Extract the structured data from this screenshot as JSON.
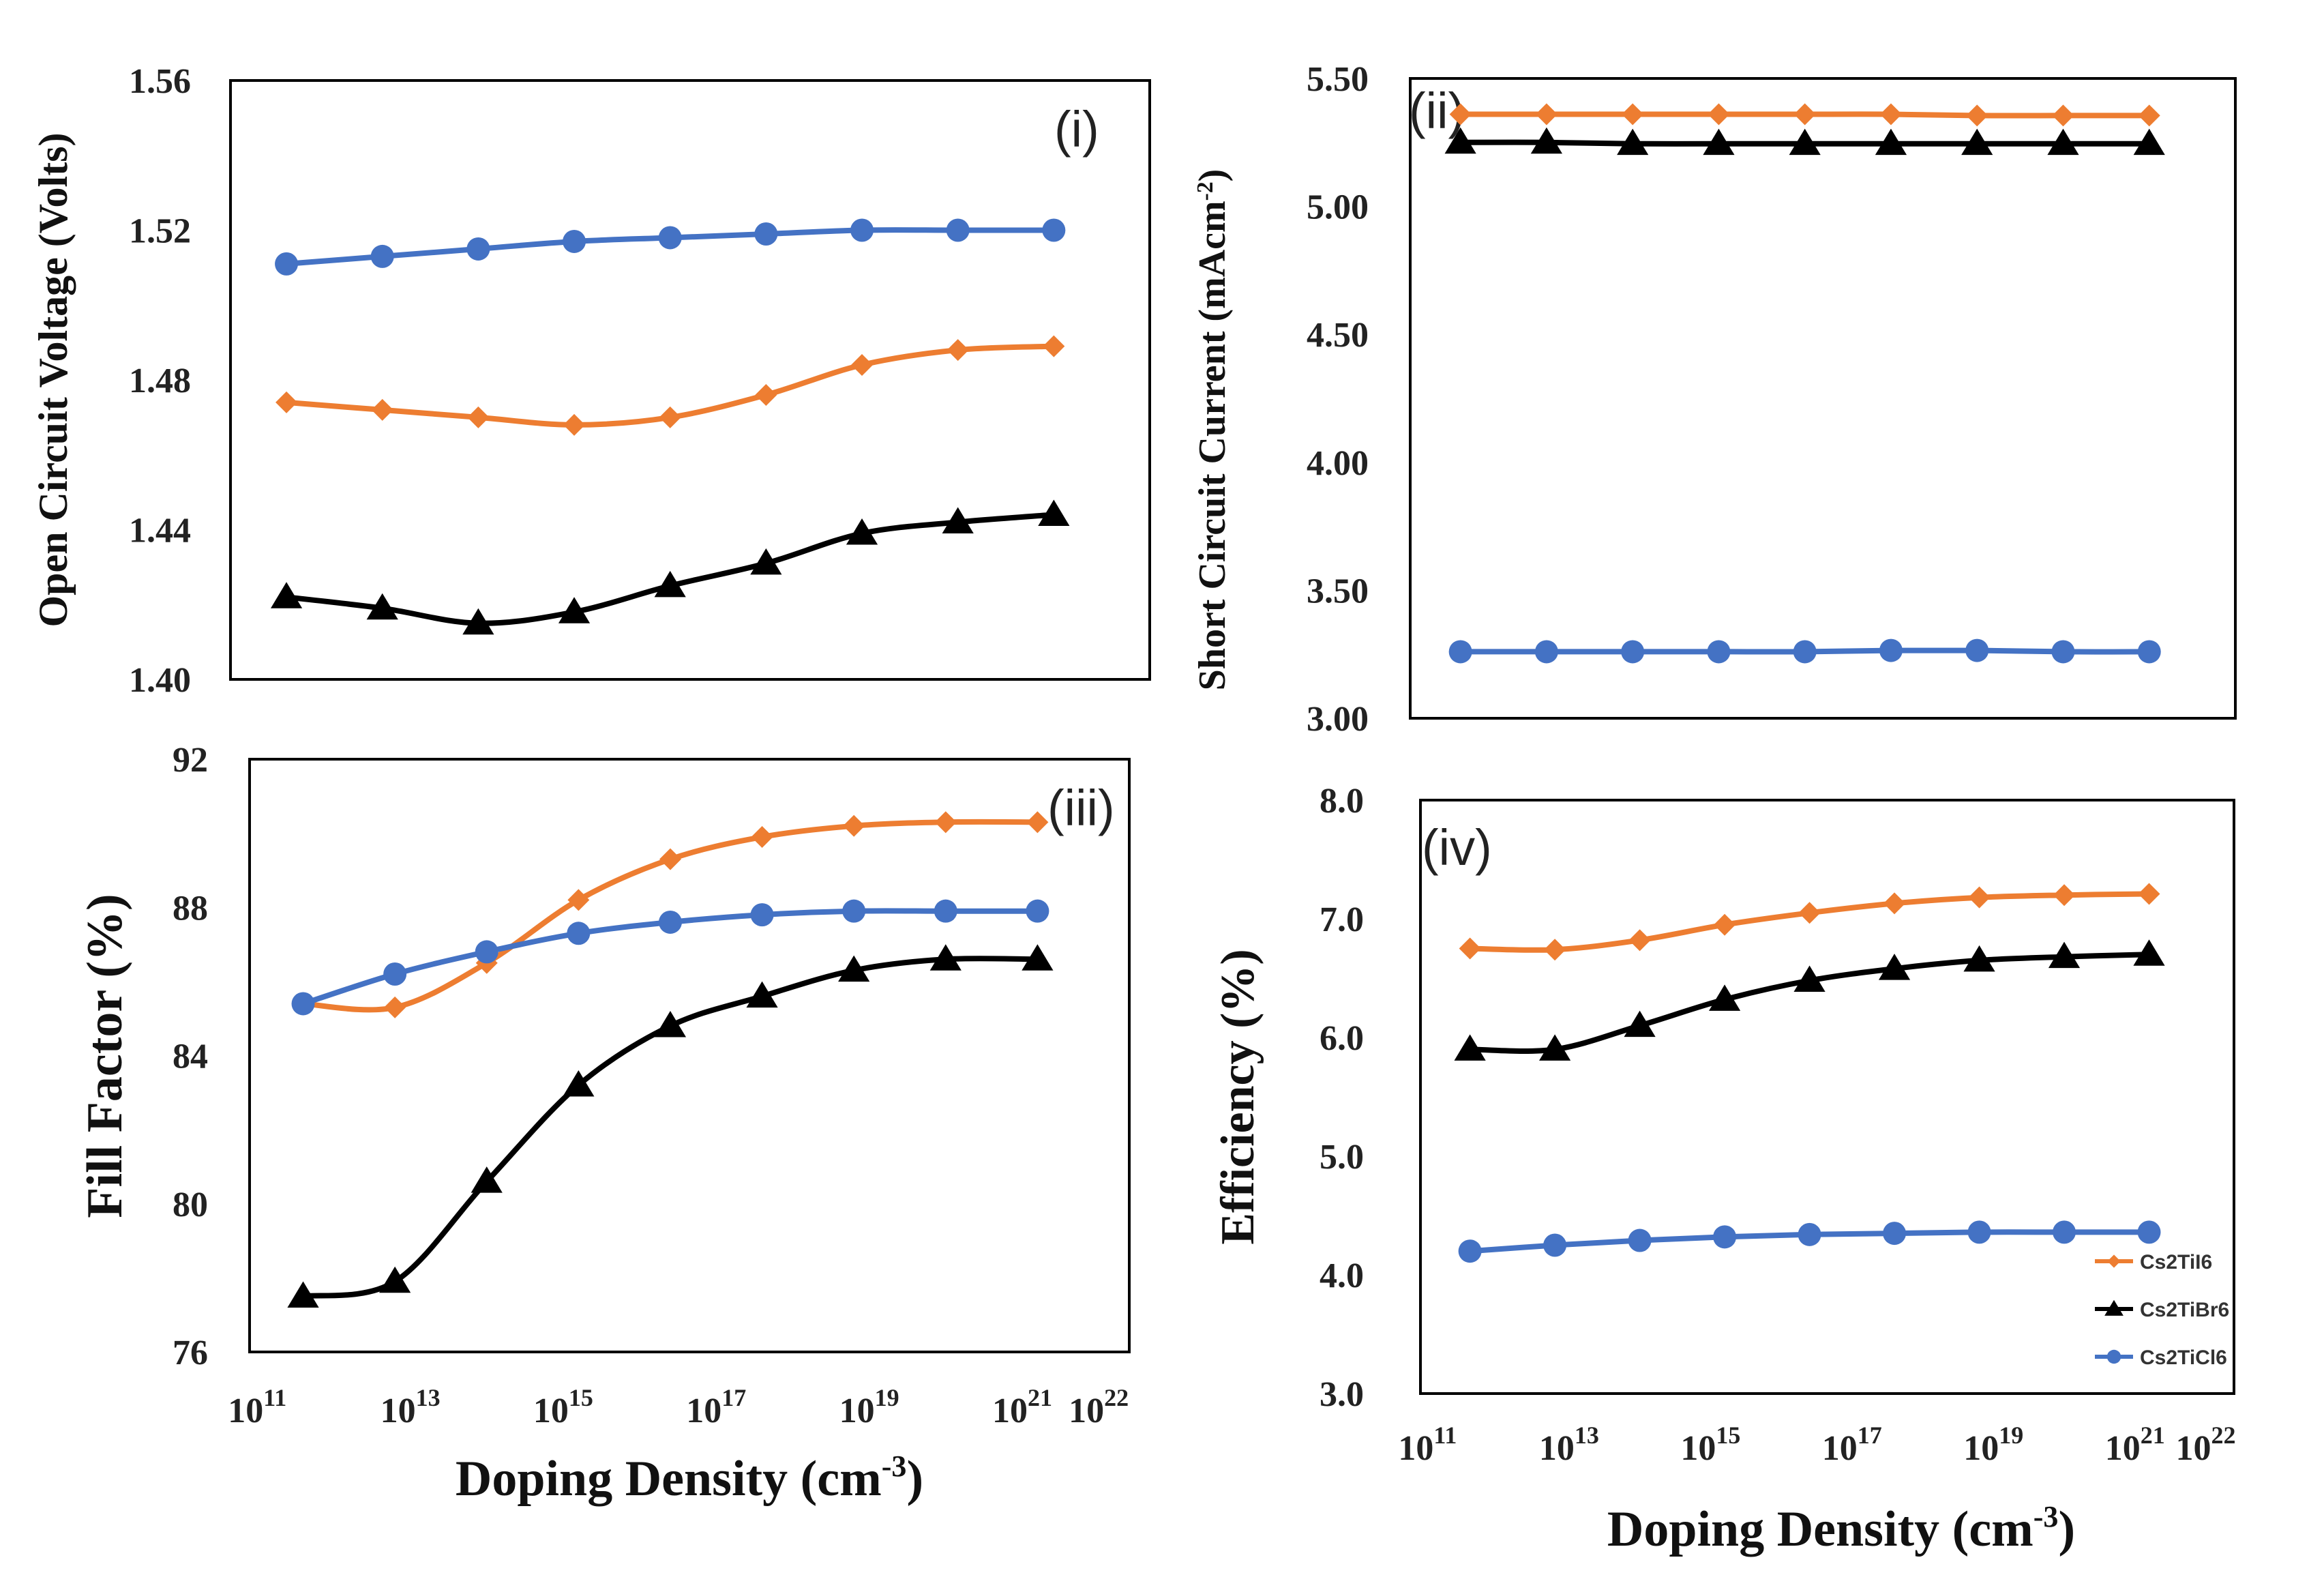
{
  "colors": {
    "Cs2TiI6": "#ED7D31",
    "Cs2TiBr6": "#000000",
    "Cs2TiCl6": "#4472C4"
  },
  "legend": [
    "Cs2TiI6",
    "Cs2TiBr6",
    "Cs2TiCl6"
  ],
  "chart_data": [
    {
      "type": "line",
      "panel": "(i)",
      "ylabel": "Open Circuit Voltage (Volts)",
      "xlabel": "",
      "ylim": [
        1.4,
        1.56
      ],
      "yticks": [
        "1.40",
        "1.44",
        "1.48",
        "1.52",
        "1.56"
      ],
      "x": [
        11.6,
        12.8,
        14,
        15.2,
        16.4,
        17.6,
        18.8,
        20,
        21.2
      ],
      "series": [
        {
          "name": "Cs2TiI6",
          "marker": "diamond",
          "values": [
            1.474,
            1.472,
            1.47,
            1.468,
            1.47,
            1.476,
            1.484,
            1.488,
            1.489
          ]
        },
        {
          "name": "Cs2TiBr6",
          "marker": "triangle",
          "values": [
            1.422,
            1.419,
            1.415,
            1.418,
            1.425,
            1.431,
            1.439,
            1.442,
            1.444
          ]
        },
        {
          "name": "Cs2TiCl6",
          "marker": "circle",
          "values": [
            1.511,
            1.513,
            1.515,
            1.517,
            1.518,
            1.519,
            1.52,
            1.52,
            1.52
          ]
        }
      ]
    },
    {
      "type": "line",
      "panel": "(ii)",
      "ylabel": "Short Circuit Current (mAcm⁻²)",
      "xlabel": "",
      "ylim": [
        3.0,
        5.5
      ],
      "yticks": [
        "3.00",
        "3.50",
        "4.00",
        "4.50",
        "5.00",
        "5.50"
      ],
      "x": [
        11.6,
        12.8,
        14,
        15.2,
        16.4,
        17.6,
        18.8,
        20,
        21.2
      ],
      "series": [
        {
          "name": "Cs2TiI6",
          "marker": "diamond",
          "values": [
            5.36,
            5.36,
            5.36,
            5.36,
            5.36,
            5.36,
            5.355,
            5.355,
            5.355
          ]
        },
        {
          "name": "Cs2TiBr6",
          "marker": "triangle",
          "values": [
            5.25,
            5.25,
            5.245,
            5.245,
            5.245,
            5.245,
            5.245,
            5.245,
            5.245
          ]
        },
        {
          "name": "Cs2TiCl6",
          "marker": "circle",
          "values": [
            3.26,
            3.26,
            3.26,
            3.26,
            3.26,
            3.265,
            3.265,
            3.26,
            3.26
          ]
        }
      ]
    },
    {
      "type": "line",
      "panel": "(iii)",
      "ylabel": "Fill Factor (%)",
      "xlabel": "Doping Density (cm⁻³)",
      "ylim": [
        76,
        92
      ],
      "yticks": [
        "76",
        "80",
        "84",
        "88",
        "92"
      ],
      "xticks_exp": [
        "11",
        "13",
        "15",
        "17",
        "19",
        "21",
        "22"
      ],
      "x": [
        11.6,
        12.8,
        14,
        15.2,
        16.4,
        17.6,
        18.8,
        20,
        21.2
      ],
      "series": [
        {
          "name": "Cs2TiI6",
          "marker": "diamond",
          "values": [
            85.4,
            85.3,
            86.5,
            88.2,
            89.3,
            89.9,
            90.2,
            90.3,
            90.3
          ]
        },
        {
          "name": "Cs2TiBr6",
          "marker": "triangle",
          "values": [
            77.5,
            77.9,
            80.6,
            83.2,
            84.8,
            85.6,
            86.3,
            86.6,
            86.6
          ]
        },
        {
          "name": "Cs2TiCl6",
          "marker": "circle",
          "values": [
            85.4,
            86.2,
            86.8,
            87.3,
            87.6,
            87.8,
            87.9,
            87.9,
            87.9
          ]
        }
      ]
    },
    {
      "type": "line",
      "panel": "(iv)",
      "ylabel": "Efficiency (%)",
      "xlabel": "Doping Density (cm⁻³)",
      "ylim": [
        3.0,
        8.0
      ],
      "yticks": [
        "3.0",
        "4.0",
        "5.0",
        "6.0",
        "7.0",
        "8.0"
      ],
      "xticks_exp": [
        "11",
        "13",
        "15",
        "17",
        "19",
        "21",
        "22"
      ],
      "x": [
        11.6,
        12.8,
        14,
        15.2,
        16.4,
        17.6,
        18.8,
        20,
        21.2
      ],
      "series": [
        {
          "name": "Cs2TiI6",
          "marker": "diamond",
          "values": [
            6.75,
            6.74,
            6.82,
            6.95,
            7.05,
            7.13,
            7.18,
            7.2,
            7.21
          ]
        },
        {
          "name": "Cs2TiBr6",
          "marker": "triangle",
          "values": [
            5.9,
            5.9,
            6.1,
            6.32,
            6.48,
            6.58,
            6.65,
            6.68,
            6.7
          ]
        },
        {
          "name": "Cs2TiCl6",
          "marker": "circle",
          "values": [
            4.2,
            4.25,
            4.29,
            4.32,
            4.34,
            4.35,
            4.36,
            4.36,
            4.36
          ]
        }
      ]
    }
  ]
}
